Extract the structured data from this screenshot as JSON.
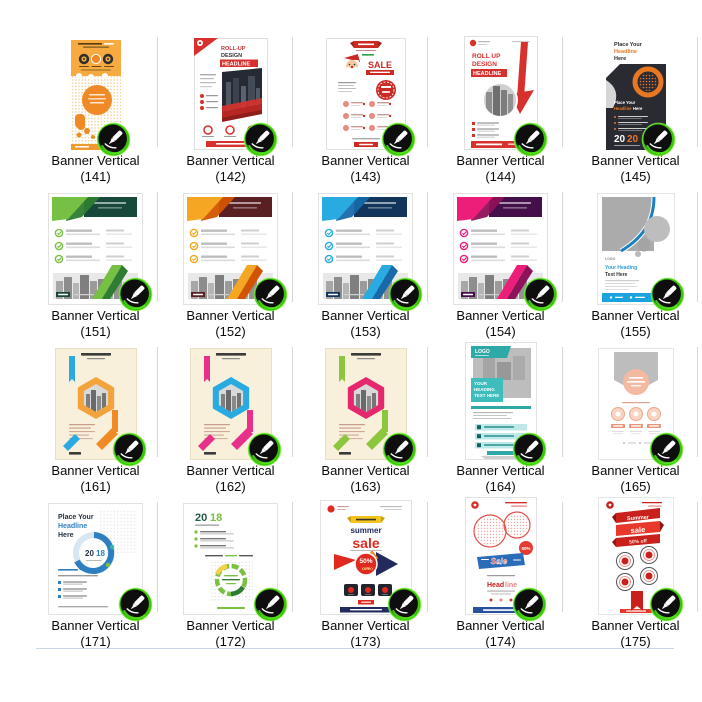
{
  "window": {
    "background": "#ffffff"
  },
  "separators": {
    "column_line": "#d7d7d7",
    "bottom_line": "#c9d7e8"
  },
  "badge": {
    "name": "CorelDRAW pen badge",
    "ring": "#38C60A",
    "body": "#0E0E0E",
    "glyph": "#ffffff"
  },
  "items": [
    {
      "title": "Banner Vertical",
      "number": "(141)",
      "thumb": {
        "type": "blob",
        "colors": {
          "bg": "#F6AA3F",
          "accent": "#F08A26",
          "footer": "#EF9A2E"
        },
        "texts": {}
      }
    },
    {
      "title": "Banner Vertical",
      "number": "(142)",
      "thumb": {
        "type": "rollup1",
        "colors": {
          "red": "#D7312E",
          "photo": "#262B33"
        },
        "texts": {
          "l1": "ROLL-UP",
          "l2": "DESIGN",
          "l3": "HEADLINE"
        }
      }
    },
    {
      "title": "Banner Vertical",
      "number": "(143)",
      "thumb": {
        "type": "xmas",
        "colors": {
          "red": "#CC2B24",
          "green": "#2F9E44"
        },
        "texts": {
          "sale": "SALE"
        }
      }
    },
    {
      "title": "Banner Vertical",
      "number": "(144)",
      "thumb": {
        "type": "rollup2",
        "colors": {
          "red": "#D7312E"
        },
        "texts": {
          "l1": "ROLL UP",
          "l2": "DESIGN",
          "l3": "HEADLINE"
        }
      }
    },
    {
      "title": "Banner Vertical",
      "number": "(145)",
      "thumb": {
        "type": "dark2020",
        "colors": {
          "panel": "#2A2A33",
          "orange": "#E87722"
        },
        "texts": {
          "t1": "Place Your",
          "t2": "Headline",
          "t3": "Here",
          "p1": "Place Your",
          "p2": "Headline",
          "p3": "Here",
          "ya": "20",
          "yb": "20"
        }
      }
    },
    {
      "title": "Banner Vertical",
      "number": "(151)",
      "thumb": {
        "type": "city",
        "colors": {
          "light": "#76C043",
          "dark": "#2E7D32",
          "header": "#17483A"
        },
        "texts": {}
      }
    },
    {
      "title": "Banner Vertical",
      "number": "(152)",
      "thumb": {
        "type": "city",
        "colors": {
          "light": "#F5A623",
          "dark": "#D35400",
          "header": "#5A1F22"
        },
        "texts": {}
      }
    },
    {
      "title": "Banner Vertical",
      "number": "(153)",
      "thumb": {
        "type": "city",
        "colors": {
          "light": "#29ABE2",
          "dark": "#1769AA",
          "header": "#12355B"
        },
        "texts": {}
      }
    },
    {
      "title": "Banner Vertical",
      "number": "(154)",
      "thumb": {
        "type": "city",
        "colors": {
          "light": "#EC1E79",
          "dark": "#8E1259",
          "header": "#45104A"
        },
        "texts": {}
      }
    },
    {
      "title": "Banner Vertical",
      "number": "(155)",
      "thumb": {
        "type": "gray155",
        "colors": {
          "blue": "#1B7FC0",
          "footer": "#1BA3E0",
          "gray": "#ABABAB"
        },
        "texts": {
          "logo": "LOGO",
          "h1": "Your Heading",
          "h2": "Text Here"
        }
      }
    },
    {
      "title": "Banner Vertical",
      "number": "(161)",
      "thumb": {
        "type": "hex",
        "colors": {
          "bg": "#F9F0DC",
          "hex": "#F2A33C",
          "ra": "#29ABE2",
          "rb": "#F08A24"
        },
        "texts": {}
      }
    },
    {
      "title": "Banner Vertical",
      "number": "(162)",
      "thumb": {
        "type": "hex",
        "colors": {
          "bg": "#F9F0DC",
          "hex": "#29ABE2",
          "ra": "#E8308A",
          "rb": "#E8308A"
        },
        "texts": {}
      }
    },
    {
      "title": "Banner Vertical",
      "number": "(163)",
      "thumb": {
        "type": "hex",
        "colors": {
          "bg": "#F9F0DC",
          "hex": "#E5286E",
          "ra": "#8CC63F",
          "rb": "#8CC63F"
        },
        "texts": {}
      }
    },
    {
      "title": "Banner Vertical",
      "number": "(164)",
      "thumb": {
        "type": "teal",
        "colors": {
          "teal": "#2FA8A8",
          "teal2": "#3FBDBD",
          "row": "#BFE9E9"
        },
        "texts": {
          "logo": "LOGO",
          "h1": "YOUR",
          "h2": "HEADING",
          "h3": "TEXT HERE"
        }
      }
    },
    {
      "title": "Banner Vertical",
      "number": "(165)",
      "thumb": {
        "type": "pennant",
        "colors": {
          "gray": "#BDBDBD",
          "peach": "#F4B9A1",
          "accent": "#E9947B"
        },
        "texts": {}
      }
    },
    {
      "title": "Banner Vertical",
      "number": "(171)",
      "thumb": {
        "type": "ring",
        "colors": {
          "blue": "#2D7FC1",
          "dark": "#25323F"
        },
        "texts": {
          "t1": "Place Your",
          "t2": "Headline",
          "t3": "Here",
          "ya": "20",
          "yb": "18"
        }
      }
    },
    {
      "title": "Banner Vertical",
      "number": "(172)",
      "thumb": {
        "type": "green",
        "colors": {
          "green": "#7AC143",
          "dgreen": "#2E7D32",
          "teal": "#1E5A46",
          "yellow": "#F5D24B"
        },
        "texts": {
          "ya": "20",
          "yb": "18"
        }
      }
    },
    {
      "title": "Banner Vertical",
      "number": "(173)",
      "thumb": {
        "type": "summer",
        "colors": {
          "red": "#E02A20",
          "navy": "#232A5E",
          "yellow": "#F5C41C"
        },
        "texts": {
          "w1": "summer",
          "w2": "sale",
          "pct": "50%",
          "off": "OFF"
        }
      }
    },
    {
      "title": "Banner Vertical",
      "number": "(174)",
      "thumb": {
        "type": "sale174",
        "colors": {
          "red": "#D7312E",
          "blue": "#2B6CB8",
          "footer": "#28519E"
        },
        "texts": {
          "w1": "Sale",
          "h1": "Head",
          "h2": "line",
          "pct": "50%"
        }
      }
    },
    {
      "title": "Banner Vertical",
      "number": "(175)",
      "thumb": {
        "type": "zigzag",
        "colors": {
          "red": "#C9201B",
          "red2": "#E8372B"
        },
        "texts": {
          "w1": "Summer",
          "w2": "sale",
          "w3": "50% off"
        }
      }
    }
  ]
}
